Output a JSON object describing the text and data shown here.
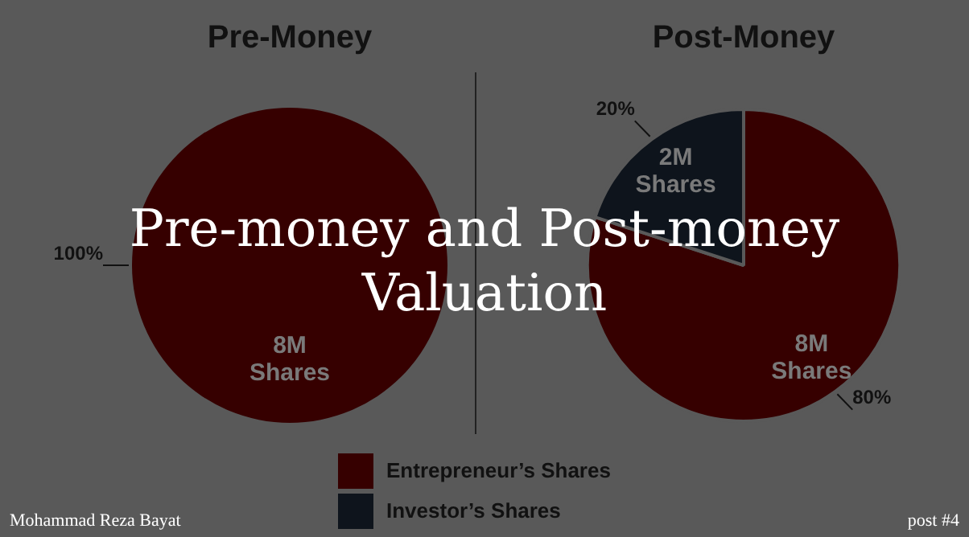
{
  "chart_data": [
    {
      "type": "pie",
      "title": "Pre-Money",
      "categories": [
        null
      ],
      "values": [
        100
      ],
      "colors": [
        "#360000"
      ],
      "value_labels": [
        "100%"
      ],
      "annotations": [
        "8M Shares"
      ]
    },
    {
      "type": "pie",
      "title": "Post-Money",
      "categories": [
        "Entrepreneur’s Shares",
        "Investor’s Shares"
      ],
      "values": [
        80,
        20
      ],
      "colors": [
        "#360000",
        "#0e141c"
      ],
      "value_labels": [
        "80%",
        "20%"
      ],
      "annotations": [
        "8M Shares",
        "2M Shares"
      ],
      "legend": "bottom"
    },
    {
      "type": "other",
      "title": "Pre-money and Post-money Valuation",
      "annotations": [
        "Mohammad Reza Bayat",
        "post #4"
      ]
    }
  ]
}
